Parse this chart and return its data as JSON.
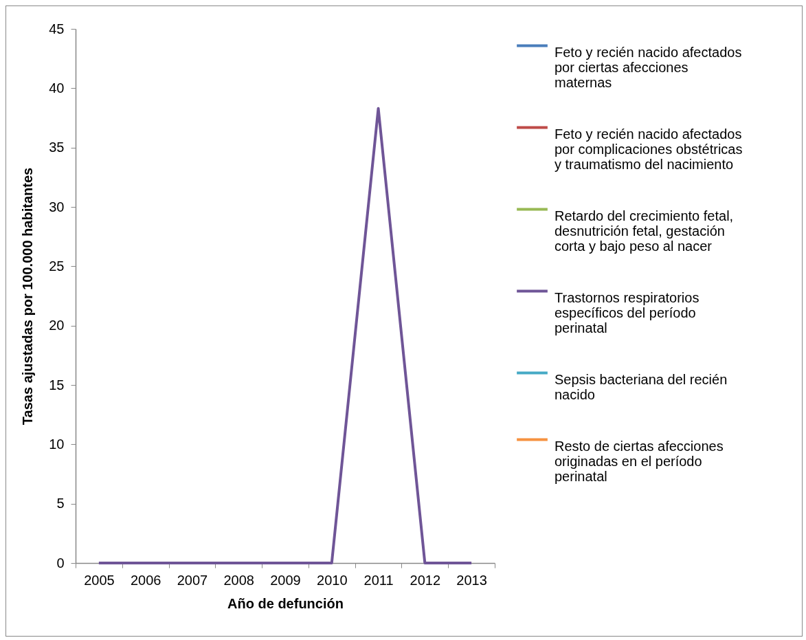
{
  "chart_data": {
    "type": "line",
    "xlabel": "Año de defunción",
    "ylabel": "Tasas ajustadas por 100.000 habitantes",
    "categories": [
      "2005",
      "2006",
      "2007",
      "2008",
      "2009",
      "2010",
      "2011",
      "2012",
      "2013"
    ],
    "series": [
      {
        "name": "Feto y recién nacido afectados por ciertas afecciones maternas",
        "color": "#4a7ebb",
        "values": [
          null,
          null,
          null,
          null,
          null,
          null,
          null,
          null,
          null
        ]
      },
      {
        "name": "Feto y recién nacido afectados por complicaciones obstétricas y traumatismo del nacimiento",
        "color": "#be4b48",
        "values": [
          null,
          null,
          null,
          null,
          null,
          null,
          null,
          null,
          null
        ]
      },
      {
        "name": "Retardo del crecimiento fetal, desnutrición fetal, gestación corta y bajo peso al nacer",
        "color": "#98b954",
        "values": [
          null,
          null,
          null,
          null,
          null,
          null,
          null,
          null,
          null
        ]
      },
      {
        "name": "Trastornos respiratorios específicos del período perinatal",
        "color": "#6f5597",
        "values": [
          0,
          0,
          0,
          0,
          0,
          0,
          38.3,
          0,
          0
        ]
      },
      {
        "name": "Sepsis bacteriana del recién nacido",
        "color": "#46aac5",
        "values": [
          null,
          null,
          null,
          null,
          null,
          null,
          null,
          null,
          null
        ]
      },
      {
        "name": "Resto de ciertas afecciones originadas en el período perinatal",
        "color": "#f69240",
        "values": [
          null,
          null,
          null,
          null,
          null,
          null,
          null,
          null,
          null
        ]
      }
    ],
    "ylim": [
      0,
      45
    ],
    "yticks": [
      0,
      5,
      10,
      15,
      20,
      25,
      30,
      35,
      40,
      45
    ],
    "grid": false,
    "legend": "right",
    "marker": "none",
    "line_style": "solid"
  }
}
